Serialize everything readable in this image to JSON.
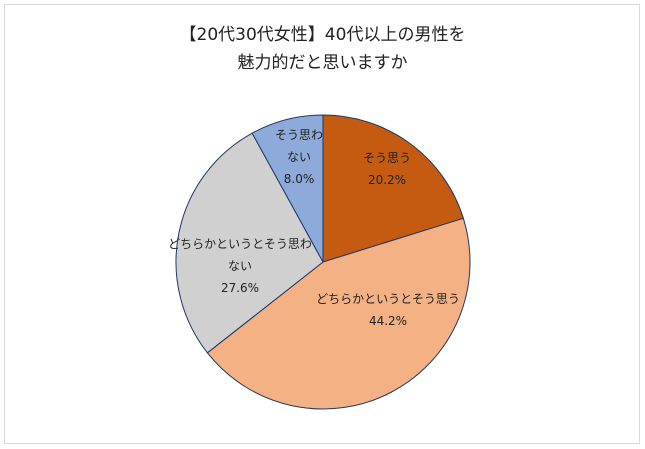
{
  "chart_data": {
    "type": "pie",
    "title_lines": [
      "【20代30代女性】40代以上の男性を",
      "魅力的だと思いますか"
    ],
    "slices": [
      {
        "name": "そう思う",
        "value": 20.2,
        "value_label": "20.2%",
        "color": "#c55a11",
        "label_lines": [
          "そう思う"
        ]
      },
      {
        "name": "どちらかというとそう思う",
        "value": 44.2,
        "value_label": "44.2%",
        "color": "#f4b183",
        "label_lines": [
          "どちらかというとそう思う"
        ]
      },
      {
        "name": "どちらかというとそう思わない",
        "value": 27.6,
        "value_label": "27.6%",
        "color": "#d0d0d0",
        "label_lines": [
          "どちらかというとそう思わ",
          "ない"
        ]
      },
      {
        "name": "そう思わない",
        "value": 8.0,
        "value_label": "8.0%",
        "color": "#8eaadb",
        "label_lines": [
          "そう思わ",
          "ない"
        ]
      }
    ],
    "start_angle_deg": 0,
    "direction": "clockwise",
    "outline_color": "#1f3864"
  }
}
